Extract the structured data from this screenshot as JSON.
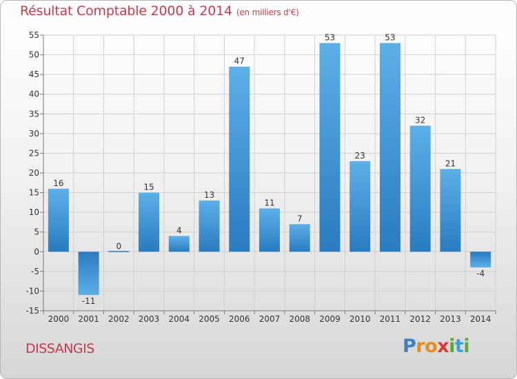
{
  "chart_data": {
    "type": "bar",
    "title": "Résultat Comptable 2000 à 2014",
    "subtitle": "(en milliers d'€)",
    "categories": [
      "2000",
      "2001",
      "2002",
      "2003",
      "2004",
      "2005",
      "2006",
      "2007",
      "2008",
      "2009",
      "2010",
      "2011",
      "2012",
      "2013",
      "2014"
    ],
    "values": [
      16,
      -11,
      0,
      15,
      4,
      13,
      47,
      11,
      7,
      53,
      23,
      53,
      32,
      21,
      -4
    ],
    "value_labels": [
      "16",
      "-11",
      "0",
      "15",
      "4",
      "13",
      "47",
      "11",
      "7",
      "53",
      "23",
      "53",
      "32",
      "21",
      "-4"
    ],
    "ylim": [
      -15,
      55
    ],
    "yticks": [
      -15,
      -10,
      -5,
      0,
      5,
      10,
      15,
      20,
      25,
      30,
      35,
      40,
      45,
      50,
      55
    ],
    "ytick_labels": [
      "-15",
      "-10",
      "-5",
      "0",
      "5",
      "10",
      "15",
      "20",
      "25",
      "30",
      "35",
      "40",
      "45",
      "50",
      "55"
    ],
    "xlabel": "",
    "ylabel": "",
    "grid": true,
    "colors": {
      "bar_light": "#5dafe8",
      "bar_dark": "#2a7bbf",
      "grid": "#d0d0d0",
      "axis": "#777777"
    }
  },
  "footer": {
    "commune": "DISSANGIS",
    "logo_letters": [
      {
        "ch": "P",
        "color": "#3d7fc4"
      },
      {
        "ch": "r",
        "color": "#e0901c"
      },
      {
        "ch": "o",
        "color": "#e0901c"
      },
      {
        "ch": "x",
        "color": "#d63b3b"
      },
      {
        "ch": "i",
        "color": "#5aa83a"
      },
      {
        "ch": "t",
        "color": "#3d9fd8"
      },
      {
        "ch": "i",
        "color": "#5aa83a"
      }
    ]
  }
}
